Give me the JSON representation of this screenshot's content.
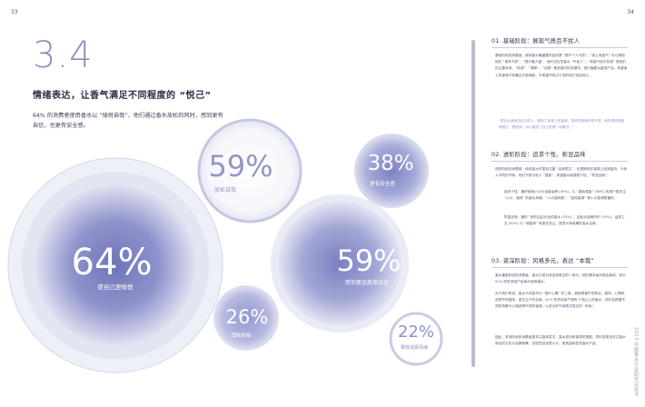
{
  "page_numbers": {
    "left": "33",
    "right": "34"
  },
  "section": {
    "number": "3.4",
    "title": "情绪表达，让香气满足不同程度的 “悦己”",
    "intro": "64% 的消费者使用香水以 “愉悦自我”，他们通过香水放松的同时，感到更有自信，也更有安全感。"
  },
  "bubbles": [
    {
      "value": "64%",
      "label": "使自己更愉悦"
    },
    {
      "value": "59%",
      "label": "放松自我"
    },
    {
      "value": "38%",
      "label": "更有安全感"
    },
    {
      "value": "59%",
      "label": "感到更加美丽自信"
    },
    {
      "value": "26%",
      "label": "消除烦恼"
    },
    {
      "value": "22%",
      "label": "释放消极情绪"
    }
  ],
  "sections": {
    "s1": {
      "heading": "01. 基础阶段：展现气质且不扰人",
      "p1": "基础阶段的消费者，使用香水最重要的目的是 “提升个人气质”。“身上有香气” 可以帮助他们 “更有气质”、“提升魅力值”，他们也在意香水 “不扰人”，“有香气但不张扬” 是他们的主要诉求。“低调”、“清新”、“淡雅” 是选香时的关键词，他们偏爱淡香型产品，希望身上的香味只有靠近才能闻到，不希望气味过于浓烈而打扰到他人。",
      "quote": "“很多从我身边走过的人，闻到了我身上的香味，突然觉得我好有气质。我觉得好香是有魅力，是成熟，可以增加了自己的第一印象分。”"
    },
    "s2": {
      "heading": "02. 进阶阶段：追求个性、彰显品味",
      "p1": "进阶阶段的消费者，使用香水时更加注重 “自我表达”，也更期待在香调上找到独特、与他人不同的气味，他们不愿与他人 “撞香”，希望香水能展现个性，“彰显品味”。",
      "b1": "追求个性：偏好使用小众沙龙香品牌 (40%)，以 “避免撞香” (36%) 的用户更关注 “小众、独特” 的香水风格，“小众独特感”、“独特香调” 等小众香调受偏好。",
      "b2": "彰显品味：偏好 “制作自由沙龙的香水 (33%)”，因此对品牌历史 (53%)、品质工艺 (63%) 与 “调香师” 有更多关注，愿意为有故事的香水买单。"
    },
    "s3": {
      "heading": "03. 资深阶段：风格多元，表达 “本我”",
      "p1": "香水重度阶段的消费者，香水已成为其自我表达的一部分，他们基本每天都会使用，其中 52% 的资深用户会每天使用香水。",
      "p2": "对于他们来说，香水不仅能作为 “提升心情” 的工具，更能根据不同场合、服饰、心情来选择不同香味，表达当下的自我。51% 的资深用户拥有 5 瓶以上的香水，他们会根据不同的场景与心境选择不同的香调，以多元的气味表达真实的 “本我”。",
      "p3": "因此，资深阶段的消费者更关注香味层次、香水成分和香调的搭配，同时会更加关注香水背后的文化与品牌故事，并愿意尝试更小众、更具独特性的香水产品。"
    }
  },
  "vertical_caption": "2023 中国香水行业研究白皮书"
}
